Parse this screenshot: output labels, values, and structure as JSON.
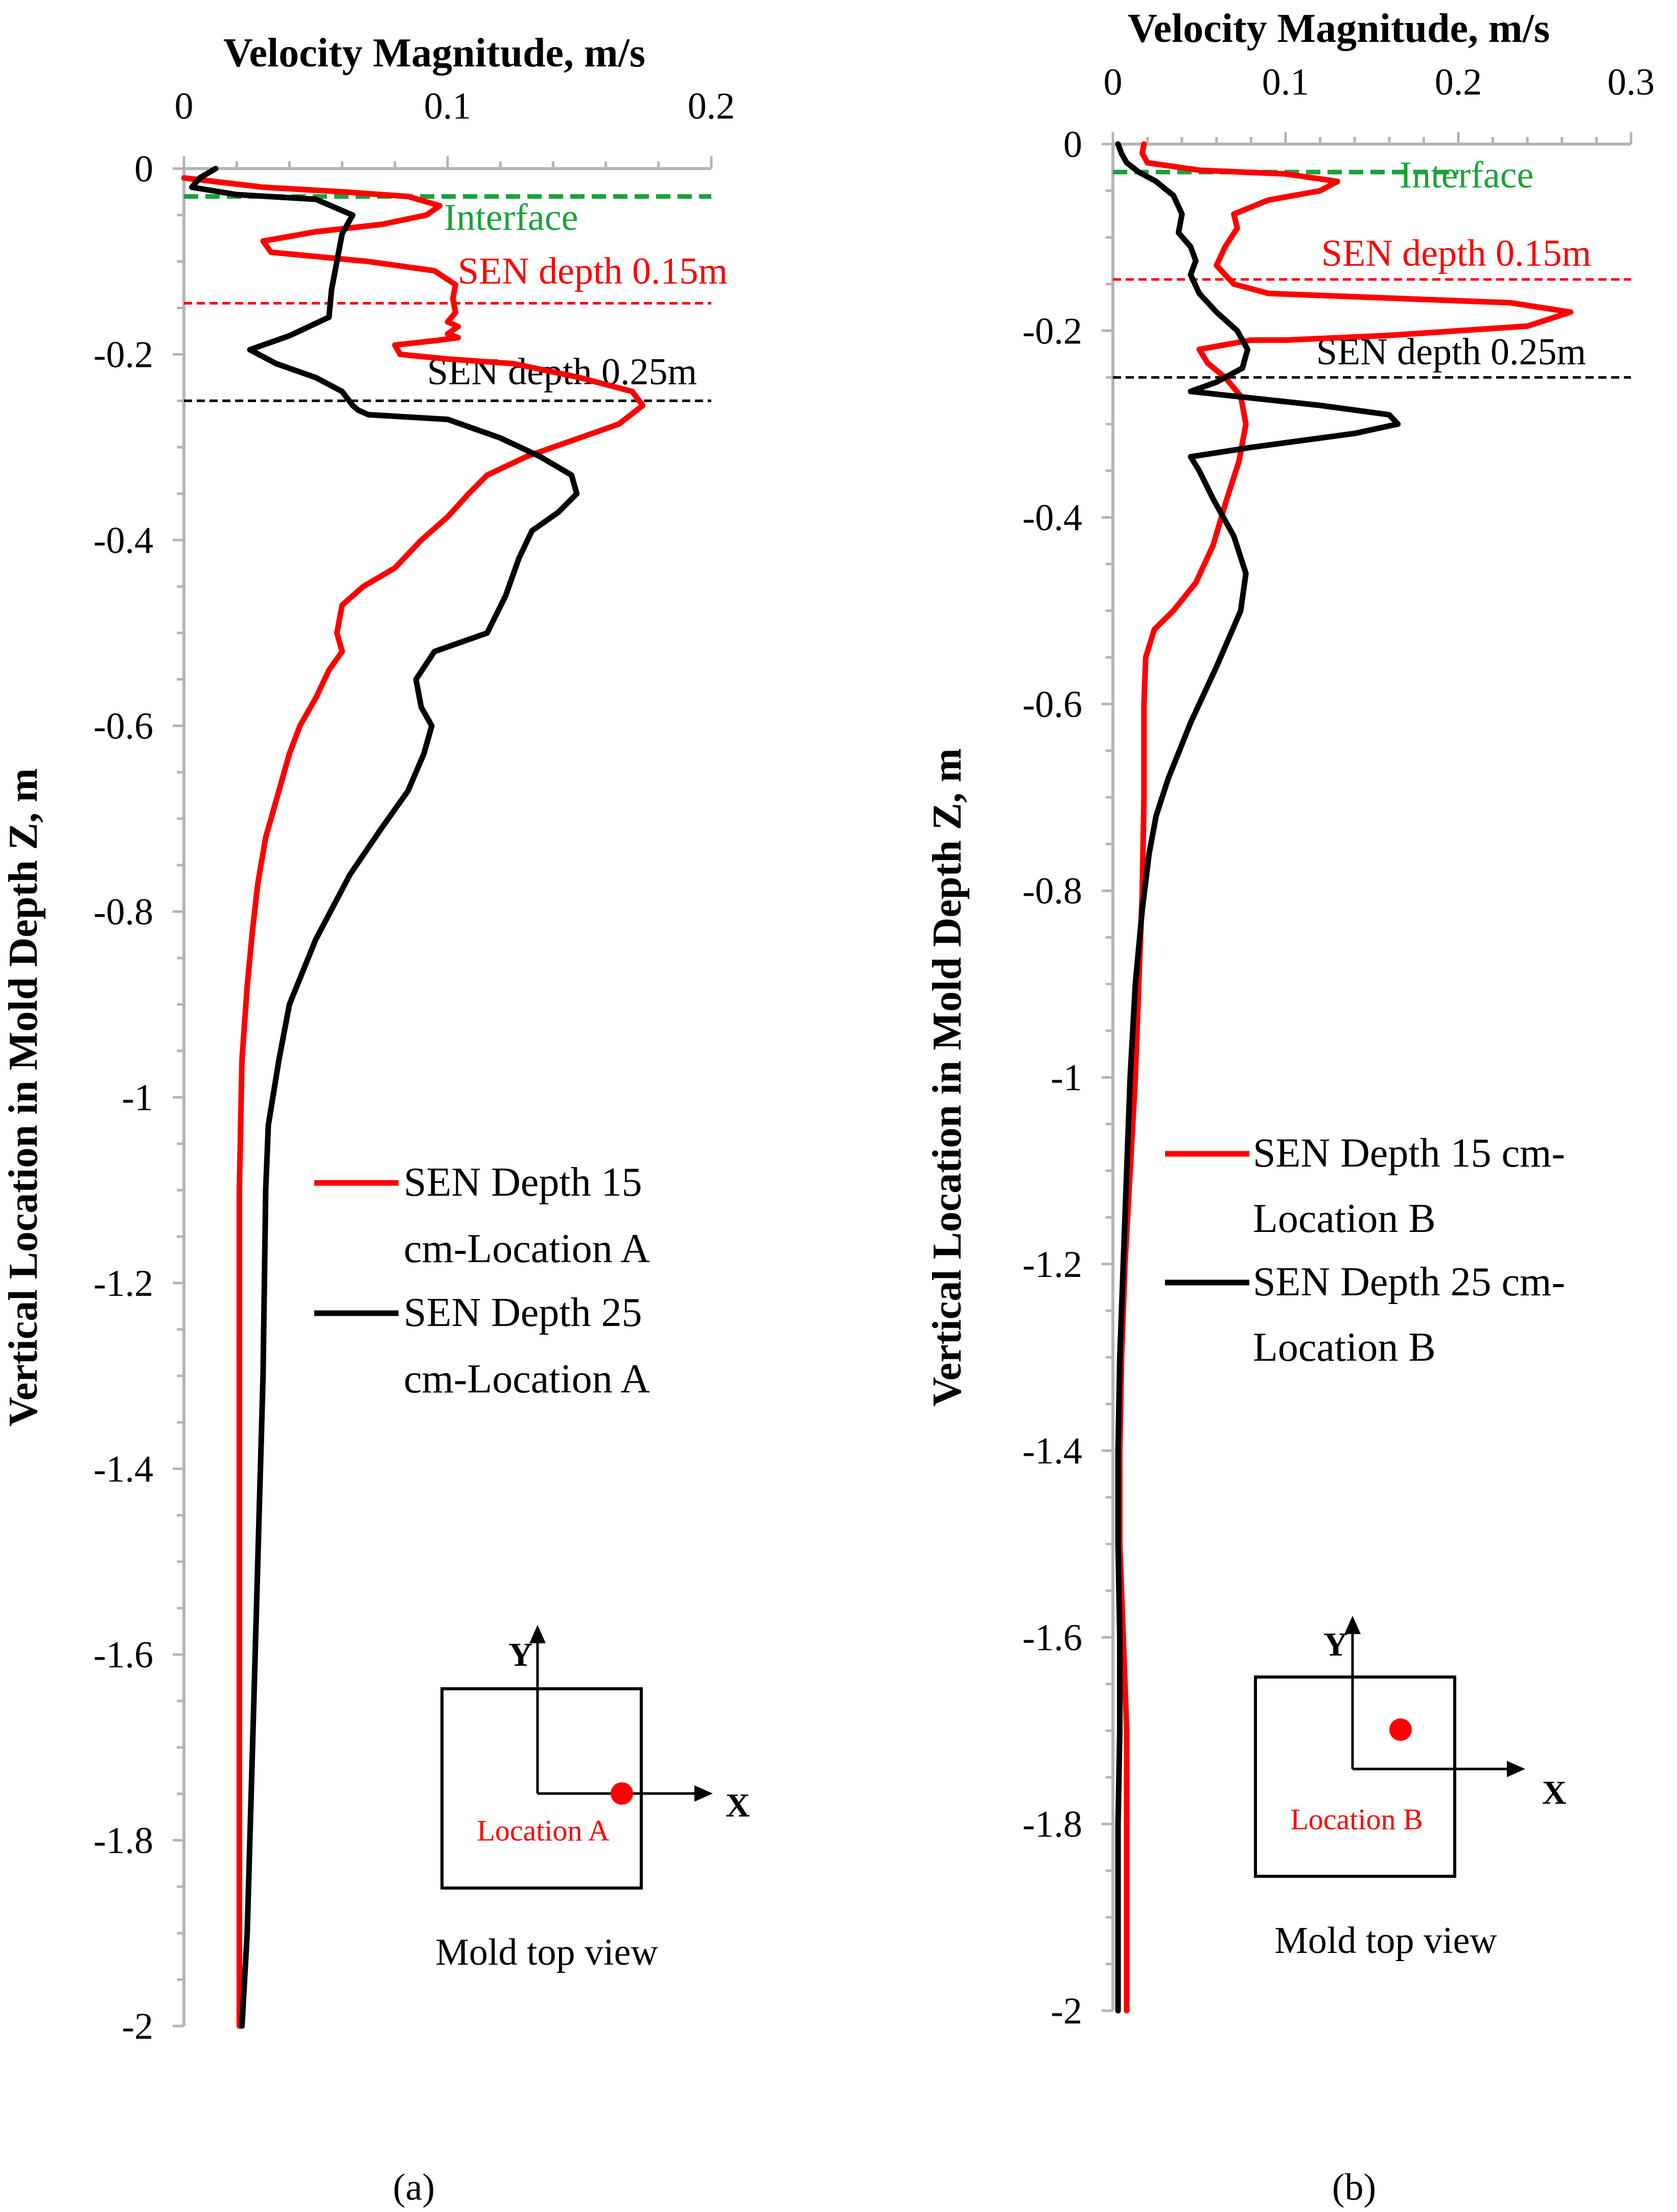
{
  "figure": {
    "caption_a": "(a)",
    "caption_b": "(b)"
  },
  "chart_data": [
    {
      "type": "line",
      "panel": "a",
      "title": "Velocity Magnitude, m/s",
      "xlabel": "Velocity Magnitude, m/s",
      "ylabel": "Vertical Location in Mold Depth Z, m",
      "xlim": [
        0,
        0.2
      ],
      "ylim": [
        -2,
        0
      ],
      "x_ticks": [
        "0",
        "0.1",
        "0.2"
      ],
      "y_ticks": [
        "0",
        "-0.2",
        "-0.4",
        "-0.6",
        "-0.8",
        "-1",
        "-1.2",
        "-1.4",
        "-1.6",
        "-1.8",
        "-2"
      ],
      "reference_lines": [
        {
          "label": "Interface",
          "y": -0.03,
          "color": "#1aa23a",
          "x_from": 0,
          "x_to": 0.2
        },
        {
          "label": "SEN depth 0.15m",
          "y": -0.145,
          "color": "#ff0000",
          "x_from": 0,
          "x_to": 0.2
        },
        {
          "label": "SEN depth 0.25m",
          "y": -0.25,
          "color": "#000000",
          "x_from": 0,
          "x_to": 0.2
        }
      ],
      "legend": {
        "placement": "right-middle",
        "entries": [
          {
            "line1": "SEN Depth 15",
            "line2": "cm-Location A",
            "color": "#ff0000"
          },
          {
            "line1": "SEN Depth 25",
            "line2": "cm-Location A",
            "color": "#000000"
          }
        ]
      },
      "inset": {
        "y_axis": "Y",
        "x_axis": "X",
        "point_label": "Location A",
        "caption": "Mold top view",
        "point_color": "#ff0000",
        "point_position": "on the X axis, right of centre"
      },
      "series": [
        {
          "name": "SEN Depth 15 cm-Location A",
          "color": "#ff0000",
          "points": [
            [
              0.0,
              -0.01
            ],
            [
              0.03,
              -0.02
            ],
            [
              0.06,
              -0.025
            ],
            [
              0.085,
              -0.03
            ],
            [
              0.097,
              -0.04
            ],
            [
              0.092,
              -0.05
            ],
            [
              0.075,
              -0.06
            ],
            [
              0.05,
              -0.068
            ],
            [
              0.03,
              -0.078
            ],
            [
              0.033,
              -0.09
            ],
            [
              0.07,
              -0.1
            ],
            [
              0.095,
              -0.11
            ],
            [
              0.103,
              -0.125
            ],
            [
              0.102,
              -0.14
            ],
            [
              0.103,
              -0.155
            ],
            [
              0.1,
              -0.165
            ],
            [
              0.104,
              -0.17
            ],
            [
              0.1,
              -0.178
            ],
            [
              0.104,
              -0.182
            ],
            [
              0.096,
              -0.185
            ],
            [
              0.08,
              -0.19
            ],
            [
              0.082,
              -0.2
            ],
            [
              0.1,
              -0.205
            ],
            [
              0.125,
              -0.21
            ],
            [
              0.15,
              -0.225
            ],
            [
              0.17,
              -0.24
            ],
            [
              0.174,
              -0.255
            ],
            [
              0.165,
              -0.275
            ],
            [
              0.15,
              -0.29
            ],
            [
              0.13,
              -0.31
            ],
            [
              0.115,
              -0.33
            ],
            [
              0.108,
              -0.35
            ],
            [
              0.1,
              -0.375
            ],
            [
              0.09,
              -0.4
            ],
            [
              0.08,
              -0.43
            ],
            [
              0.068,
              -0.45
            ],
            [
              0.06,
              -0.47
            ],
            [
              0.058,
              -0.5
            ],
            [
              0.06,
              -0.52
            ],
            [
              0.055,
              -0.54
            ],
            [
              0.05,
              -0.57
            ],
            [
              0.044,
              -0.6
            ],
            [
              0.04,
              -0.63
            ],
            [
              0.036,
              -0.67
            ],
            [
              0.031,
              -0.72
            ],
            [
              0.028,
              -0.77
            ],
            [
              0.026,
              -0.82
            ],
            [
              0.024,
              -0.88
            ],
            [
              0.022,
              -0.96
            ],
            [
              0.021,
              -1.1
            ],
            [
              0.021,
              -1.3
            ],
            [
              0.021,
              -1.5
            ],
            [
              0.021,
              -1.7
            ],
            [
              0.021,
              -1.9
            ],
            [
              0.021,
              -2.0
            ]
          ]
        },
        {
          "name": "SEN Depth 25 cm-Location A",
          "color": "#000000",
          "points": [
            [
              0.012,
              -0.0
            ],
            [
              0.006,
              -0.01
            ],
            [
              0.003,
              -0.02
            ],
            [
              0.02,
              -0.028
            ],
            [
              0.05,
              -0.033
            ],
            [
              0.064,
              -0.05
            ],
            [
              0.06,
              -0.07
            ],
            [
              0.058,
              -0.1
            ],
            [
              0.056,
              -0.13
            ],
            [
              0.055,
              -0.16
            ],
            [
              0.04,
              -0.18
            ],
            [
              0.025,
              -0.195
            ],
            [
              0.035,
              -0.21
            ],
            [
              0.05,
              -0.225
            ],
            [
              0.06,
              -0.24
            ],
            [
              0.064,
              -0.255
            ],
            [
              0.066,
              -0.26
            ],
            [
              0.07,
              -0.265
            ],
            [
              0.1,
              -0.27
            ],
            [
              0.11,
              -0.28
            ],
            [
              0.12,
              -0.29
            ],
            [
              0.135,
              -0.31
            ],
            [
              0.147,
              -0.33
            ],
            [
              0.149,
              -0.35
            ],
            [
              0.142,
              -0.37
            ],
            [
              0.132,
              -0.39
            ],
            [
              0.127,
              -0.42
            ],
            [
              0.122,
              -0.46
            ],
            [
              0.115,
              -0.5
            ],
            [
              0.095,
              -0.52
            ],
            [
              0.088,
              -0.55
            ],
            [
              0.09,
              -0.58
            ],
            [
              0.094,
              -0.6
            ],
            [
              0.091,
              -0.63
            ],
            [
              0.085,
              -0.67
            ],
            [
              0.075,
              -0.71
            ],
            [
              0.063,
              -0.76
            ],
            [
              0.05,
              -0.83
            ],
            [
              0.04,
              -0.9
            ],
            [
              0.036,
              -0.96
            ],
            [
              0.032,
              -1.03
            ],
            [
              0.031,
              -1.1
            ],
            [
              0.03,
              -1.3
            ],
            [
              0.028,
              -1.5
            ],
            [
              0.026,
              -1.7
            ],
            [
              0.024,
              -1.9
            ],
            [
              0.022,
              -2.0
            ]
          ]
        }
      ]
    },
    {
      "type": "line",
      "panel": "b",
      "title": "Velocity Magnitude, m/s",
      "xlabel": "Velocity Magnitude, m/s",
      "ylabel": "Vertical Location in Mold Depth Z, m",
      "xlim": [
        0,
        0.3
      ],
      "ylim": [
        -2,
        0
      ],
      "x_ticks": [
        "0",
        "0.1",
        "0.2",
        "0.3"
      ],
      "y_ticks": [
        "0",
        "-0.2",
        "-0.4",
        "-0.6",
        "-0.8",
        "-1",
        "-1.2",
        "-1.4",
        "-1.6",
        "-1.8",
        "-2"
      ],
      "reference_lines": [
        {
          "label": "Interface",
          "y": -0.03,
          "color": "#1aa23a",
          "x_from": 0,
          "x_to": 0.2
        },
        {
          "label": "SEN depth 0.15m",
          "y": -0.145,
          "color": "#ff0000",
          "x_from": 0,
          "x_to": 0.3
        },
        {
          "label": "SEN depth 0.25m",
          "y": -0.25,
          "color": "#000000",
          "x_from": 0,
          "x_to": 0.3
        }
      ],
      "legend": {
        "placement": "right-middle",
        "entries": [
          {
            "line1": "SEN Depth 15 cm-",
            "line2": "Location B",
            "color": "#ff0000"
          },
          {
            "line1": "SEN Depth 25 cm-",
            "line2": "Location B",
            "color": "#000000"
          }
        ]
      },
      "inset": {
        "y_axis": "Y",
        "x_axis": "X",
        "point_label": "Location B",
        "caption": "Mold top view",
        "point_color": "#ff0000",
        "point_position": "upper-right quadrant"
      },
      "series": [
        {
          "name": "SEN Depth 15 cm-Location B",
          "color": "#ff0000",
          "points": [
            [
              0.018,
              -0.0
            ],
            [
              0.017,
              -0.01
            ],
            [
              0.02,
              -0.02
            ],
            [
              0.05,
              -0.028
            ],
            [
              0.1,
              -0.032
            ],
            [
              0.13,
              -0.04
            ],
            [
              0.12,
              -0.05
            ],
            [
              0.09,
              -0.06
            ],
            [
              0.07,
              -0.075
            ],
            [
              0.072,
              -0.09
            ],
            [
              0.065,
              -0.11
            ],
            [
              0.06,
              -0.13
            ],
            [
              0.07,
              -0.15
            ],
            [
              0.09,
              -0.16
            ],
            [
              0.16,
              -0.165
            ],
            [
              0.23,
              -0.17
            ],
            [
              0.265,
              -0.18
            ],
            [
              0.24,
              -0.195
            ],
            [
              0.16,
              -0.205
            ],
            [
              0.1,
              -0.21
            ],
            [
              0.08,
              -0.21
            ],
            [
              0.05,
              -0.22
            ],
            [
              0.055,
              -0.235
            ],
            [
              0.065,
              -0.25
            ],
            [
              0.074,
              -0.27
            ],
            [
              0.077,
              -0.3
            ],
            [
              0.073,
              -0.34
            ],
            [
              0.066,
              -0.38
            ],
            [
              0.058,
              -0.43
            ],
            [
              0.048,
              -0.47
            ],
            [
              0.035,
              -0.5
            ],
            [
              0.024,
              -0.52
            ],
            [
              0.019,
              -0.55
            ],
            [
              0.018,
              -0.6
            ],
            [
              0.018,
              -0.7
            ],
            [
              0.017,
              -0.8
            ],
            [
              0.015,
              -0.9
            ],
            [
              0.013,
              -1.0
            ],
            [
              0.01,
              -1.1
            ],
            [
              0.007,
              -1.2
            ],
            [
              0.005,
              -1.3
            ],
            [
              0.004,
              -1.4
            ],
            [
              0.004,
              -1.5
            ],
            [
              0.006,
              -1.6
            ],
            [
              0.008,
              -1.7
            ],
            [
              0.008,
              -1.8
            ],
            [
              0.008,
              -1.9
            ],
            [
              0.008,
              -2.0
            ]
          ]
        },
        {
          "name": "SEN Depth 25 cm-Location B",
          "color": "#000000",
          "points": [
            [
              0.003,
              -0.0
            ],
            [
              0.005,
              -0.01
            ],
            [
              0.008,
              -0.02
            ],
            [
              0.015,
              -0.03
            ],
            [
              0.025,
              -0.04
            ],
            [
              0.035,
              -0.055
            ],
            [
              0.04,
              -0.075
            ],
            [
              0.038,
              -0.095
            ],
            [
              0.045,
              -0.11
            ],
            [
              0.048,
              -0.125
            ],
            [
              0.045,
              -0.14
            ],
            [
              0.05,
              -0.16
            ],
            [
              0.06,
              -0.18
            ],
            [
              0.072,
              -0.2
            ],
            [
              0.078,
              -0.22
            ],
            [
              0.075,
              -0.24
            ],
            [
              0.06,
              -0.255
            ],
            [
              0.045,
              -0.265
            ],
            [
              0.07,
              -0.27
            ],
            [
              0.12,
              -0.28
            ],
            [
              0.16,
              -0.29
            ],
            [
              0.165,
              -0.3
            ],
            [
              0.14,
              -0.31
            ],
            [
              0.08,
              -0.325
            ],
            [
              0.045,
              -0.335
            ],
            [
              0.05,
              -0.35
            ],
            [
              0.058,
              -0.38
            ],
            [
              0.07,
              -0.42
            ],
            [
              0.077,
              -0.46
            ],
            [
              0.074,
              -0.5
            ],
            [
              0.06,
              -0.56
            ],
            [
              0.045,
              -0.62
            ],
            [
              0.032,
              -0.68
            ],
            [
              0.025,
              -0.72
            ],
            [
              0.021,
              -0.76
            ],
            [
              0.017,
              -0.82
            ],
            [
              0.013,
              -0.9
            ],
            [
              0.01,
              -1.0
            ],
            [
              0.008,
              -1.1
            ],
            [
              0.006,
              -1.2
            ],
            [
              0.004,
              -1.3
            ],
            [
              0.003,
              -1.4
            ],
            [
              0.003,
              -1.5
            ],
            [
              0.004,
              -1.6
            ],
            [
              0.004,
              -1.7
            ],
            [
              0.003,
              -1.8
            ],
            [
              0.003,
              -1.9
            ],
            [
              0.003,
              -2.0
            ]
          ]
        }
      ]
    }
  ]
}
